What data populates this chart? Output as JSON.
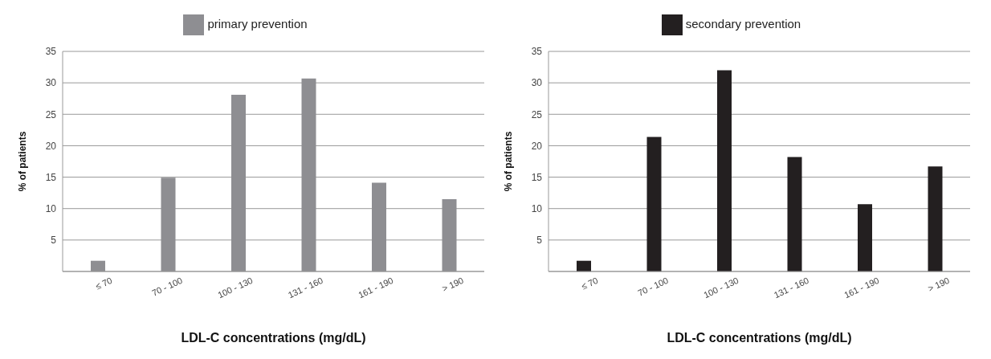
{
  "chart_data": [
    {
      "type": "bar",
      "xlabel": "LDL-C concentrations (mg/dL)",
      "ylabel": "% of patients",
      "categories": [
        "≤ 70",
        "70 - 100",
        "100 - 130",
        "131 - 160",
        "161 - 190",
        "> 190"
      ],
      "series": [
        {
          "name": "primary prevention",
          "color": "#8e8e92",
          "values": [
            1.7,
            14.9,
            28.1,
            30.7,
            14.1,
            11.5
          ]
        }
      ],
      "ylim": [
        0,
        35
      ],
      "yticks": [
        5,
        10,
        15,
        20,
        25,
        30,
        35
      ],
      "grid": "y",
      "legend": "top"
    },
    {
      "type": "bar",
      "xlabel": "LDL-C concentrations (mg/dL)",
      "ylabel": "% of patients",
      "categories": [
        "≤ 70",
        "70 - 100",
        "100 - 130",
        "131 - 160",
        "161 - 190",
        "> 190"
      ],
      "series": [
        {
          "name": "secondary prevention",
          "color": "#231f20",
          "values": [
            1.7,
            21.4,
            32.0,
            18.2,
            10.7,
            16.7
          ]
        }
      ],
      "ylim": [
        0,
        35
      ],
      "yticks": [
        5,
        10,
        15,
        20,
        25,
        30,
        35
      ],
      "grid": "y",
      "legend": "top"
    }
  ]
}
